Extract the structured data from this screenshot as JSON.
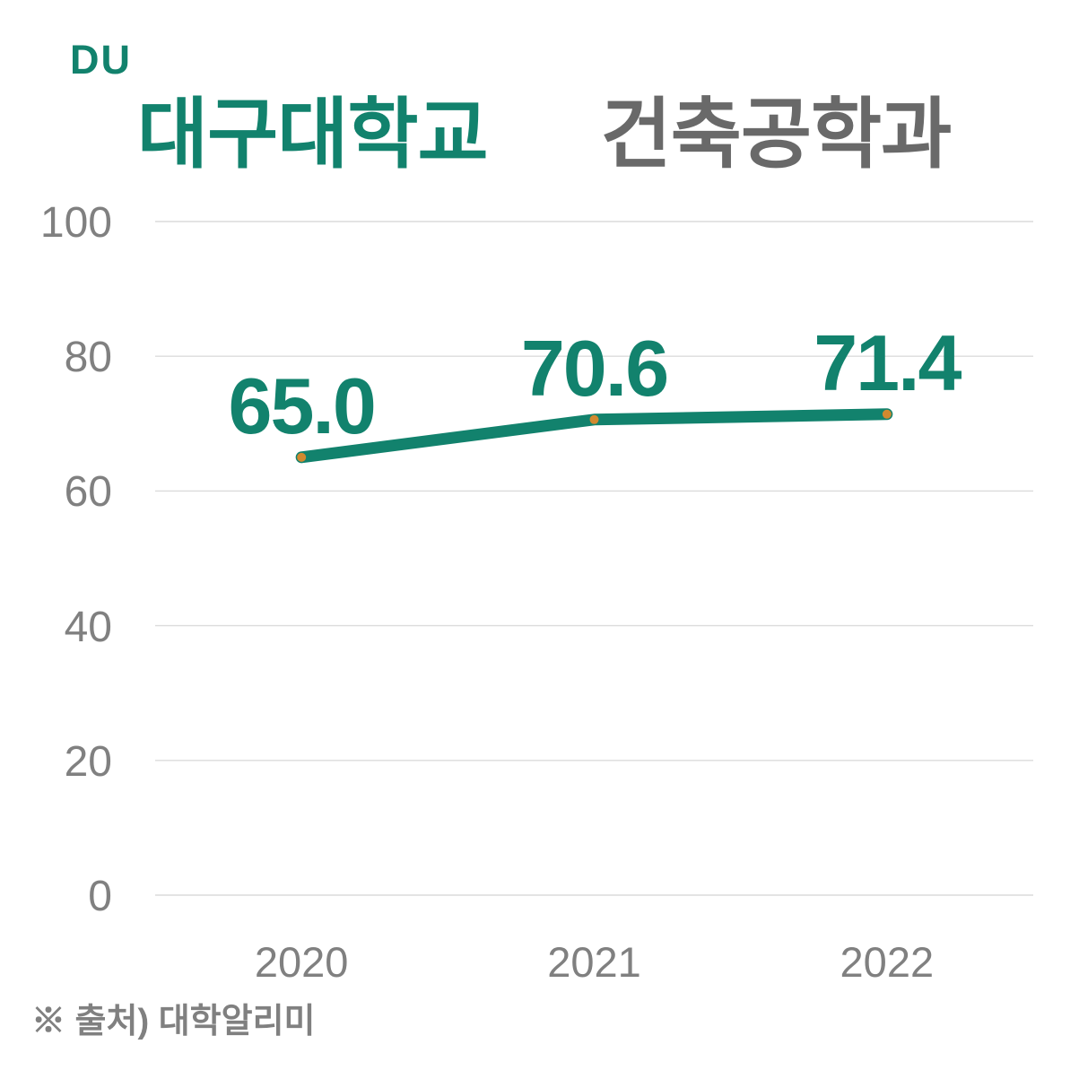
{
  "header": {
    "logo": "DU",
    "title_university": "대구대학교",
    "title_department": "건축공학과"
  },
  "footer": {
    "source_note": "※ 출처) 대학알리미"
  },
  "colors": {
    "teal": "#12826D",
    "title_gray": "#696969",
    "axis_gray": "#808080",
    "gridline": "#DBDBDB",
    "marker_orange": "#D1892F"
  },
  "chart_data": {
    "type": "line",
    "title": "대구대학교 건축공학과",
    "categories": [
      "2020",
      "2021",
      "2022"
    ],
    "series": [
      {
        "name": "대구대학교 건축공학과",
        "values": [
          65.0,
          70.6,
          71.4
        ]
      }
    ],
    "data_labels": [
      "65.0",
      "70.6",
      "71.4"
    ],
    "xlabel": "",
    "ylabel": "",
    "ylim": [
      0,
      100
    ],
    "yticks": [
      0,
      20,
      40,
      60,
      80,
      100
    ],
    "grid": true,
    "legend": "none",
    "label_decimals": 1
  }
}
